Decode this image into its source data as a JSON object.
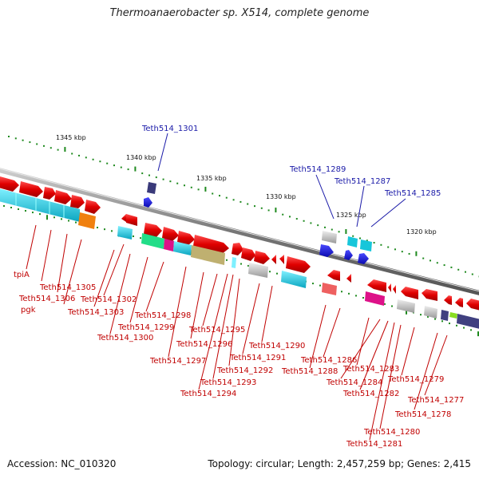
{
  "title": "Thermoanaerobacter sp. X514, complete genome",
  "footer": {
    "accession": "Accession: NC_010320",
    "summary": "Topology: circular; Length: 2,457,259 bp; Genes: 2,415"
  },
  "scale_labels": [
    "1345 kbp",
    "1340 kbp",
    "1335 kbp",
    "1330 kbp",
    "1325 kbp",
    "1320 kbp"
  ],
  "colors": {
    "forward_gene": "#e00000",
    "backbone": "#7f7f7f",
    "tick": "#1f8a1f",
    "label_red": "#c00000",
    "label_blue": "#1a1aa8",
    "cyan": "#17c6da",
    "blue_gene": "#1414e6",
    "grey_gene": "#b8b8b8",
    "green_gene": "#22dd88",
    "magenta_gene": "#dd1188",
    "olive_gene": "#bfb070",
    "orange_gene": "#f08010",
    "navy_gene": "#404080"
  },
  "labels_blue": [
    "Teth514_1301",
    "Teth514_1289",
    "Teth514_1287",
    "Teth514_1285"
  ],
  "labels_red": [
    "tpiA",
    "Teth514_1305",
    "Teth514_1306",
    "pgk",
    "Teth514_1302",
    "Teth514_1303",
    "Teth514_1298",
    "Teth514_1299",
    "Teth514_1300",
    "Teth514_1295",
    "Teth514_1296",
    "Teth514_1297",
    "Teth514_1290",
    "Teth514_1291",
    "Teth514_1292",
    "Teth514_1293",
    "Teth514_1294",
    "Teth514_1286",
    "Teth514_1288",
    "Teth514_1283",
    "Teth514_1284",
    "Teth514_1282",
    "Teth514_1279",
    "Teth514_1277",
    "Teth514_1278",
    "Teth514_1280",
    "Teth514_1281"
  ]
}
